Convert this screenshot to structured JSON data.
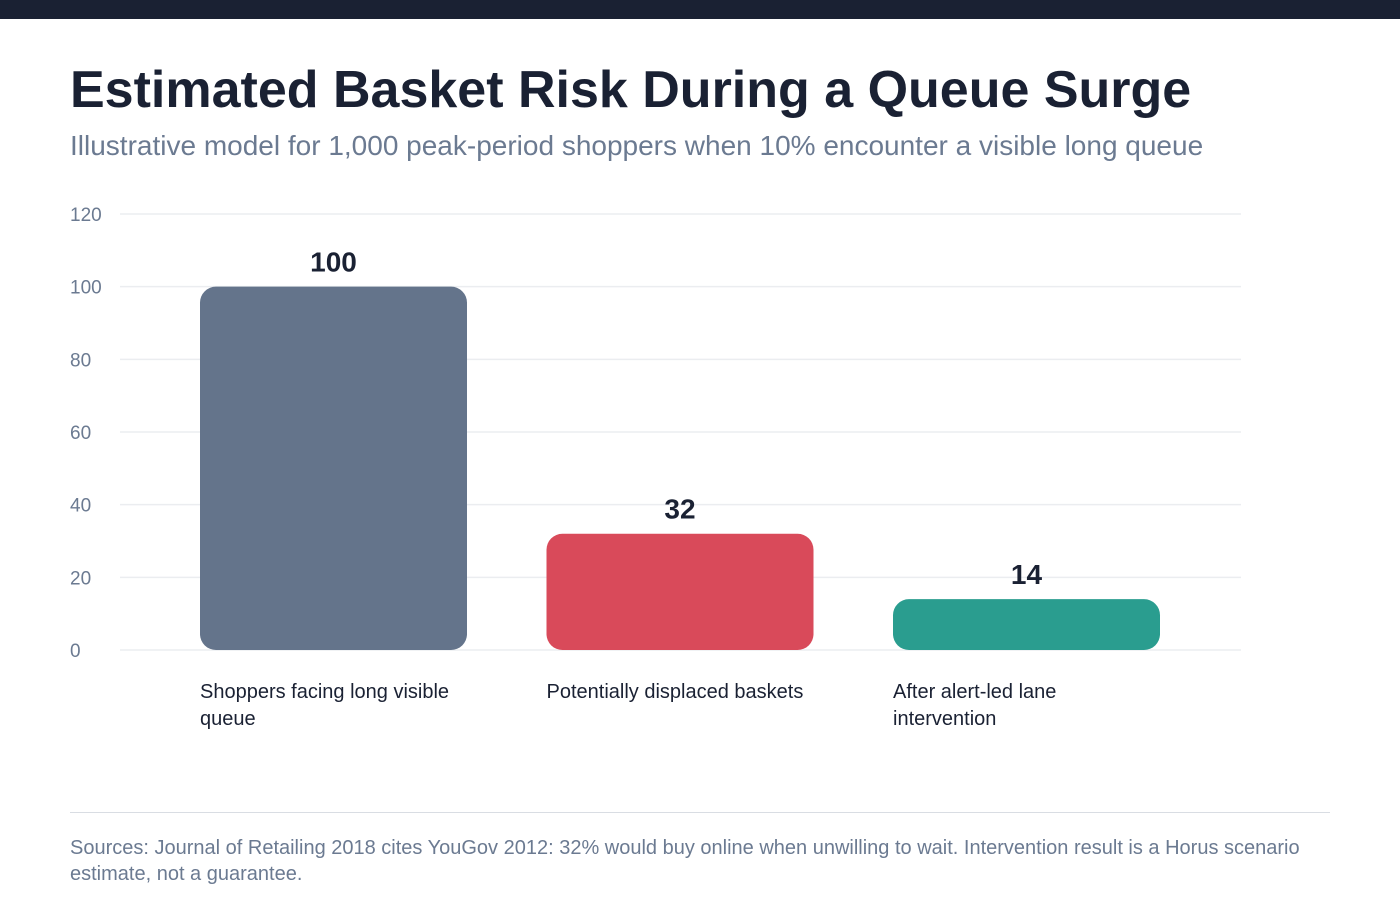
{
  "header": {
    "title": "Estimated Basket Risk During a Queue Surge",
    "subtitle": "Illustrative model for 1,000 peak-period shoppers when 10% encounter a visible long queue"
  },
  "footer": {
    "sources": "Sources: Journal of Retailing 2018 cites YouGov 2012: 32% would buy online when unwilling to wait. Intervention result is a Horus scenario estimate, not a guarantee."
  },
  "chart_data": {
    "type": "bar",
    "title": "Estimated Basket Risk During a Queue Surge",
    "subtitle": "Illustrative model for 1,000 peak-period shoppers when 10% encounter a visible long queue",
    "categories": [
      "Shoppers facing long visible queue",
      "Potentially displaced baskets",
      "After alert-led lane intervention"
    ],
    "values": [
      100,
      32,
      14
    ],
    "colors": [
      "#64748b",
      "#d94a5a",
      "#2a9d8f"
    ],
    "ylim": [
      0,
      120
    ],
    "yticks": [
      0,
      20,
      40,
      60,
      80,
      100,
      120
    ],
    "xlabel": "",
    "ylabel": "",
    "grid": true,
    "legend": "none"
  }
}
